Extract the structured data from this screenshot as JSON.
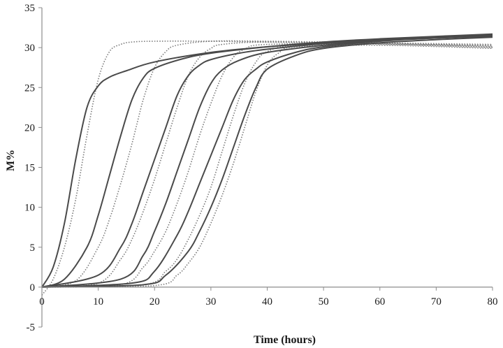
{
  "chart_data": {
    "type": "line",
    "title": "",
    "xlabel": "Time (hours)",
    "ylabel": "M%",
    "xlim": [
      0,
      80
    ],
    "ylim": [
      -5,
      35
    ],
    "xticks": [
      0,
      10,
      20,
      30,
      40,
      50,
      60,
      70,
      80
    ],
    "yticks": [
      -5,
      0,
      5,
      10,
      15,
      20,
      25,
      30,
      35
    ],
    "grid": false,
    "legend": "none",
    "series": [
      {
        "style": "solid",
        "x": [
          0,
          2,
          4,
          6,
          8,
          10,
          12,
          15,
          20,
          30,
          40,
          50,
          60,
          70,
          80
        ],
        "y": [
          0,
          2.5,
          8,
          16,
          22.5,
          25.2,
          26.3,
          27.1,
          28.2,
          29.4,
          30.1,
          30.6,
          31.0,
          31.3,
          31.6
        ]
      },
      {
        "style": "solid",
        "x": [
          0,
          4,
          8,
          10,
          12,
          14,
          16,
          18,
          20,
          25,
          30,
          40,
          50,
          60,
          70,
          80
        ],
        "y": [
          0,
          1,
          5,
          9,
          14,
          19,
          23.5,
          26.2,
          27.4,
          28.6,
          29.3,
          30.1,
          30.7,
          31.1,
          31.4,
          31.7
        ]
      },
      {
        "style": "solid",
        "x": [
          0,
          10,
          14,
          16,
          18,
          20,
          22,
          24,
          26,
          28,
          30,
          35,
          40,
          50,
          60,
          70,
          80
        ],
        "y": [
          0,
          1.5,
          5,
          8,
          12,
          16,
          20,
          24,
          26.5,
          27.8,
          28.5,
          29.3,
          29.8,
          30.5,
          31.0,
          31.3,
          31.5
        ]
      },
      {
        "style": "solid",
        "x": [
          0,
          14,
          18,
          20,
          22,
          24,
          26,
          28,
          30,
          32,
          35,
          40,
          50,
          60,
          70,
          80
        ],
        "y": [
          0,
          1,
          4,
          7,
          10.5,
          14.5,
          18.5,
          22.5,
          25.5,
          27.2,
          28.4,
          29.4,
          30.3,
          30.9,
          31.2,
          31.5
        ]
      },
      {
        "style": "solid",
        "x": [
          0,
          16,
          20,
          24,
          26,
          28,
          30,
          32,
          34,
          36,
          38,
          40,
          45,
          50,
          60,
          70,
          80
        ],
        "y": [
          0,
          0.5,
          2,
          6.5,
          9.5,
          13,
          16.5,
          20,
          23.5,
          26,
          27.3,
          28.2,
          29.4,
          30.1,
          30.8,
          31.2,
          31.4
        ]
      },
      {
        "style": "solid",
        "x": [
          0,
          18,
          22,
          26,
          28,
          30,
          32,
          34,
          36,
          38,
          40,
          45,
          50,
          60,
          70,
          80
        ],
        "y": [
          0,
          0.3,
          1.5,
          4.5,
          7,
          10,
          13.5,
          17.5,
          21.5,
          25,
          27.3,
          29,
          29.9,
          30.6,
          31.0,
          31.3
        ]
      },
      {
        "style": "dotted",
        "x": [
          0,
          2,
          4,
          6,
          8,
          10,
          12,
          14,
          16,
          20,
          30,
          40,
          60,
          80
        ],
        "y": [
          -1,
          1,
          5,
          11,
          19,
          26,
          29.5,
          30.4,
          30.7,
          30.8,
          30.8,
          30.7,
          30.5,
          30.3
        ]
      },
      {
        "style": "dotted",
        "x": [
          0,
          6,
          10,
          12,
          14,
          16,
          18,
          20,
          22,
          24,
          30,
          40,
          60,
          80
        ],
        "y": [
          0,
          0.8,
          5,
          8.5,
          13,
          18,
          23.5,
          27.5,
          29.5,
          30.3,
          30.8,
          30.8,
          30.6,
          30.4
        ]
      },
      {
        "style": "dotted",
        "x": [
          0,
          10,
          14,
          16,
          18,
          20,
          22,
          24,
          26,
          28,
          30,
          32,
          40,
          60,
          80
        ],
        "y": [
          0,
          0.5,
          3.5,
          6,
          9.5,
          13.5,
          18,
          22.5,
          26.5,
          28.8,
          29.9,
          30.4,
          30.7,
          30.5,
          30.2
        ]
      },
      {
        "style": "dotted",
        "x": [
          0,
          14,
          18,
          20,
          22,
          24,
          26,
          28,
          30,
          32,
          34,
          36,
          40,
          60,
          80
        ],
        "y": [
          0,
          0.3,
          2.5,
          4.5,
          7,
          10.5,
          14.5,
          19,
          23,
          26.5,
          28.8,
          29.8,
          30.4,
          30.5,
          30.1
        ]
      },
      {
        "style": "dotted",
        "x": [
          0,
          18,
          22,
          24,
          26,
          28,
          30,
          32,
          34,
          36,
          38,
          40,
          45,
          60,
          80
        ],
        "y": [
          0,
          0.3,
          2,
          3.5,
          6,
          9,
          12.5,
          17,
          21.5,
          25.5,
          28.2,
          29.5,
          30.3,
          30.4,
          30.0
        ]
      },
      {
        "style": "dotted",
        "x": [
          0,
          20,
          24,
          26,
          28,
          30,
          32,
          34,
          36,
          38,
          40,
          42,
          45,
          60,
          80
        ],
        "y": [
          0,
          0.2,
          1.5,
          3,
          5,
          8,
          11.5,
          15.5,
          20,
          24.5,
          27.8,
          29.3,
          30.1,
          30.3,
          29.9
        ]
      }
    ]
  }
}
